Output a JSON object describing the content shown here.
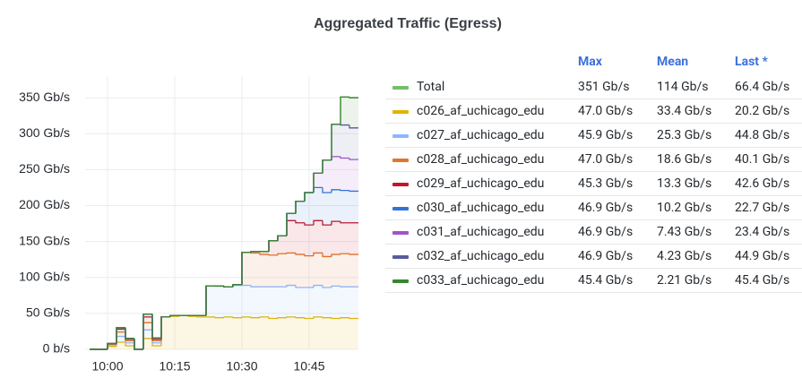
{
  "chart_data": {
    "type": "line",
    "title": "Aggregated Traffic (Egress)",
    "step": true,
    "stacked": true,
    "grid": true,
    "x": [
      "09:56",
      "09:58",
      "10:00",
      "10:02",
      "10:04",
      "10:06",
      "10:08",
      "10:10",
      "10:12",
      "10:14",
      "10:16",
      "10:18",
      "10:20",
      "10:22",
      "10:24",
      "10:26",
      "10:28",
      "10:30",
      "10:32",
      "10:34",
      "10:36",
      "10:38",
      "10:40",
      "10:42",
      "10:44",
      "10:46",
      "10:48",
      "10:50",
      "10:52",
      "10:54"
    ],
    "xlim": [
      "09:55",
      "10:56"
    ],
    "xticks": [
      "10:00",
      "10:15",
      "10:30",
      "10:45"
    ],
    "ylim": [
      0,
      380
    ],
    "yticks": [
      {
        "value": 0,
        "label": "0 b/s"
      },
      {
        "value": 50,
        "label": "50 Gb/s"
      },
      {
        "value": 100,
        "label": "100 Gb/s"
      },
      {
        "value": 150,
        "label": "150 Gb/s"
      },
      {
        "value": 200,
        "label": "200 Gb/s"
      },
      {
        "value": 250,
        "label": "250 Gb/s"
      },
      {
        "value": 300,
        "label": "300 Gb/s"
      },
      {
        "value": 350,
        "label": "350 Gb/s"
      }
    ],
    "legend": {
      "columns": [
        "Max",
        "Mean",
        "Last *"
      ]
    },
    "series": [
      {
        "name": "Total",
        "color": "#73bf69",
        "stack": false,
        "stats": [
          "351 Gb/s",
          "114 Gb/s",
          "66.4 Gb/s"
        ],
        "values": [
          0,
          0,
          8,
          30,
          15,
          0,
          49,
          16,
          45,
          47,
          47,
          47,
          47,
          88,
          88,
          87,
          90,
          135,
          136,
          136,
          151,
          158,
          189,
          206,
          218,
          245,
          263,
          313,
          351,
          350
        ]
      },
      {
        "name": "c026_af_uchicago_edu",
        "color": "#e0b400",
        "stats": [
          "47.0 Gb/s",
          "33.4 Gb/s",
          "20.2 Gb/s"
        ],
        "values": [
          0,
          0,
          4,
          10,
          5,
          0,
          15,
          5,
          45,
          46,
          47,
          46,
          45,
          45,
          44,
          45,
          44,
          45,
          44,
          45,
          43,
          44,
          45,
          44,
          43,
          45,
          44,
          43,
          44,
          43
        ]
      },
      {
        "name": "c027_af_uchicago_edu",
        "color": "#8ab8ff",
        "stats": [
          "45.9 Gb/s",
          "25.3 Gb/s",
          "44.8 Gb/s"
        ],
        "values": [
          0,
          0,
          2,
          8,
          4,
          0,
          12,
          4,
          0,
          1,
          0,
          1,
          2,
          43,
          44,
          42,
          45,
          44,
          43,
          42,
          44,
          43,
          44,
          42,
          43,
          44,
          42,
          45,
          43,
          44
        ]
      },
      {
        "name": "c028_af_uchicago_edu",
        "color": "#e0752d",
        "stats": [
          "47.0 Gb/s",
          "18.6 Gb/s",
          "40.1 Gb/s"
        ],
        "values": [
          0,
          0,
          1,
          6,
          3,
          0,
          10,
          3,
          0,
          0,
          0,
          0,
          0,
          0,
          0,
          0,
          1,
          46,
          47,
          45,
          44,
          46,
          45,
          46,
          44,
          45,
          43,
          44,
          46,
          45
        ]
      },
      {
        "name": "c029_af_uchicago_edu",
        "color": "#c4162a",
        "stats": [
          "45.3 Gb/s",
          "13.3 Gb/s",
          "42.6 Gb/s"
        ],
        "values": [
          0,
          0,
          1,
          4,
          2,
          0,
          8,
          2,
          0,
          0,
          0,
          0,
          0,
          0,
          0,
          0,
          0,
          0,
          2,
          4,
          20,
          25,
          45,
          44,
          43,
          45,
          44,
          46,
          43,
          44
        ]
      },
      {
        "name": "c030_af_uchicago_edu",
        "color": "#3274d9",
        "stats": [
          "46.9 Gb/s",
          "10.2 Gb/s",
          "22.7 Gb/s"
        ],
        "values": [
          0,
          0,
          0,
          2,
          1,
          0,
          4,
          2,
          0,
          0,
          0,
          0,
          0,
          0,
          0,
          0,
          0,
          0,
          0,
          0,
          0,
          0,
          10,
          30,
          45,
          46,
          45,
          44,
          45,
          44
        ]
      },
      {
        "name": "c031_af_uchicago_edu",
        "color": "#a352cc",
        "stats": [
          "46.9 Gb/s",
          "7.43 Gb/s",
          "23.4 Gb/s"
        ],
        "values": [
          0,
          0,
          0,
          0,
          0,
          0,
          0,
          0,
          0,
          0,
          0,
          0,
          0,
          0,
          0,
          0,
          0,
          0,
          0,
          0,
          0,
          0,
          0,
          0,
          0,
          20,
          45,
          46,
          45,
          44
        ]
      },
      {
        "name": "c032_af_uchicago_edu",
        "color": "#5a5a9e",
        "stats": [
          "46.9 Gb/s",
          "4.23 Gb/s",
          "44.9 Gb/s"
        ],
        "values": [
          0,
          0,
          0,
          0,
          0,
          0,
          0,
          0,
          0,
          0,
          0,
          0,
          0,
          0,
          0,
          0,
          0,
          0,
          0,
          0,
          0,
          0,
          0,
          0,
          0,
          0,
          0,
          45,
          46,
          44
        ]
      },
      {
        "name": "c033_af_uchicago_edu",
        "color": "#37872d",
        "stats": [
          "45.4 Gb/s",
          "2.21 Gb/s",
          "45.4 Gb/s"
        ],
        "values": [
          0,
          0,
          0,
          0,
          0,
          0,
          0,
          0,
          0,
          0,
          0,
          0,
          0,
          0,
          0,
          0,
          0,
          0,
          0,
          0,
          0,
          0,
          0,
          0,
          0,
          0,
          0,
          0,
          39,
          42
        ]
      }
    ]
  }
}
